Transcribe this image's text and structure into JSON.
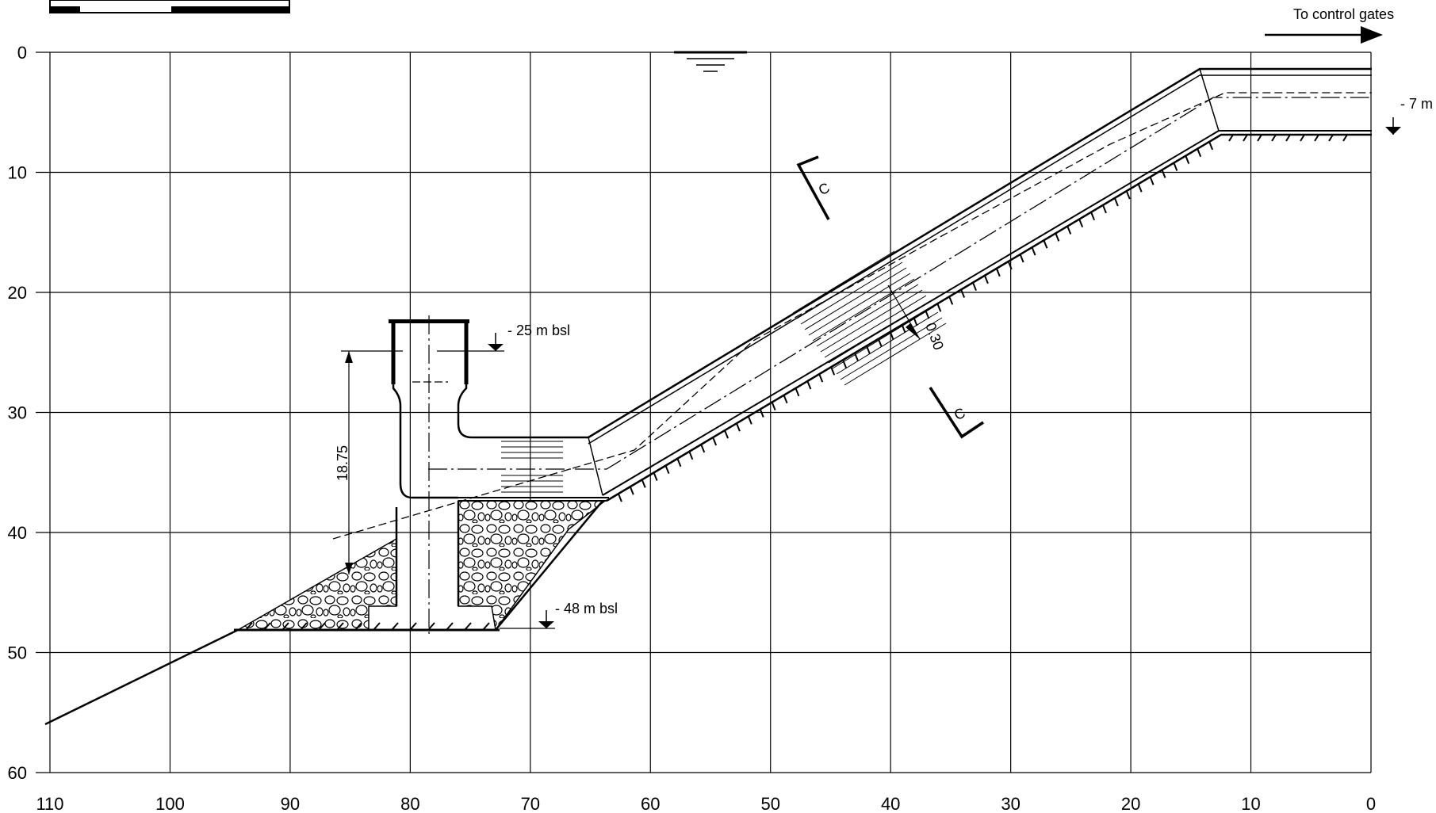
{
  "x_axis": {
    "min": 0,
    "max": 110,
    "ticks": [
      "110",
      "100",
      "90",
      "80",
      "70",
      "60",
      "50",
      "40",
      "30",
      "20",
      "10",
      "0"
    ],
    "reversed": true
  },
  "y_axis": {
    "min": 0,
    "max": 60,
    "ticks": [
      "0",
      "10",
      "20",
      "30",
      "40",
      "50",
      "60"
    ],
    "inverted": true
  },
  "grid": true,
  "annotations": {
    "flow_direction": "To control gates",
    "level_top_right": "- 7 m",
    "level_shaft_top": "- 25 m bsl",
    "level_bottom": "- 48 m bsl",
    "dimension_height": "18.75",
    "lining_thickness": "0.30",
    "section_mark": "C"
  },
  "profile": {
    "surface_water_level": 0,
    "tunnel_end_level": -7,
    "shaft_top_level": -25,
    "foundation_level": -48,
    "ground_line_points": [
      [
        94.5,
        48
      ],
      [
        110,
        56
      ]
    ]
  },
  "colors": {
    "line": "#000000",
    "background": "#ffffff"
  }
}
